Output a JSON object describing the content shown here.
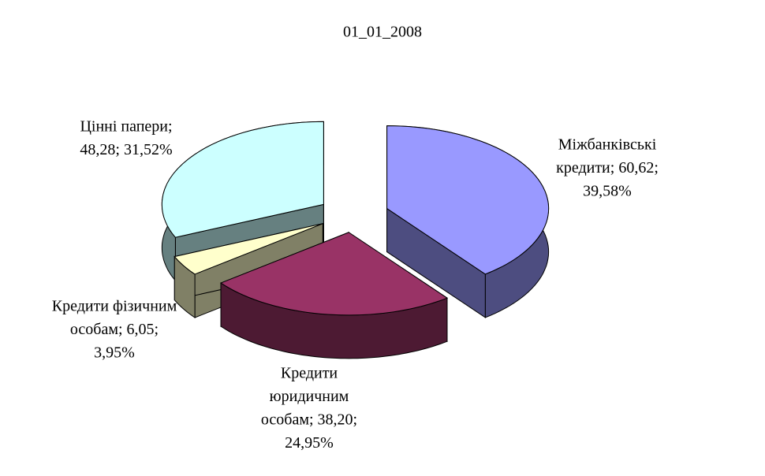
{
  "chart_data": {
    "type": "pie",
    "title": "01_01_2008",
    "categories": [
      "Міжбанківські кредити",
      "Кредити юридичним особам",
      "Кредити фізичним особам",
      "Цінні папери"
    ],
    "values": [
      60.62,
      38.2,
      6.05,
      48.28
    ],
    "value_labels": [
      [
        "Міжбанківські",
        "кредити; 60,62;",
        "39,58%"
      ],
      [
        "Кредити",
        "юридичним",
        "особам; 38,20;",
        "24,95%"
      ],
      [
        "Кредити фізичним",
        "особам; 6,05;",
        "3,95%"
      ],
      [
        "Цінні папери;",
        "48,28; 31,52%"
      ]
    ],
    "colors": [
      "#9999ff",
      "#993366",
      "#ffffcc",
      "#ccffff"
    ]
  }
}
